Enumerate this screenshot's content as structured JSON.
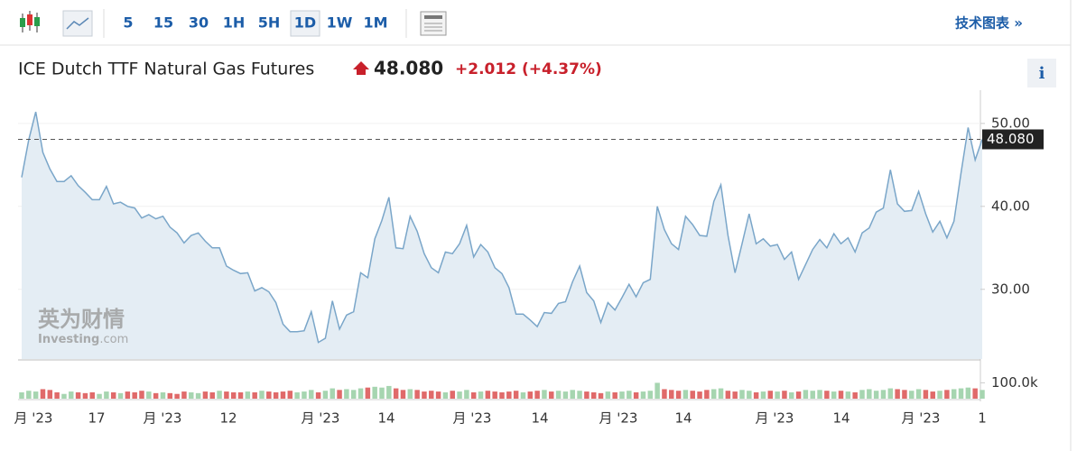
{
  "toolbar": {
    "intervals": [
      "5",
      "15",
      "30",
      "1H",
      "5H",
      "1D",
      "1W",
      "1M"
    ],
    "active": "1D",
    "link": "技术图表 »"
  },
  "header": {
    "name": "ICE Dutch TTF Natural Gas Futures",
    "price": "48.080",
    "change": "+2.012",
    "change_pct": "(+4.37%)",
    "info": "i"
  },
  "watermark": {
    "cn": "英为财情",
    "en": "Investing",
    "en_suffix": ".com"
  },
  "chart_data": {
    "type": "line",
    "values": [
      43.5,
      48,
      51.4,
      46.5,
      44.5,
      43,
      43,
      43.7,
      42.5,
      41.7,
      40.8,
      40.8,
      42.4,
      40.3,
      40.5,
      40,
      39.8,
      38.6,
      39,
      38.5,
      38.8,
      37.5,
      36.8,
      35.6,
      36.5,
      36.8,
      35.8,
      35,
      35,
      32.8,
      32.3,
      31.9,
      32,
      29.8,
      30.2,
      29.7,
      28.4,
      25.8,
      24.9,
      24.9,
      25,
      27.3,
      23.6,
      24.1,
      28.6,
      25.2,
      26.9,
      27.3,
      32,
      31.4,
      36.1,
      38.3,
      41.1,
      35,
      34.9,
      38.8,
      37,
      34.3,
      32.6,
      32,
      34.5,
      34.3,
      35.5,
      37.7,
      33.9,
      35.4,
      34.5,
      32.6,
      31.9,
      30.2,
      27,
      27,
      26.3,
      25.5,
      27.2,
      27.1,
      28.3,
      28.5,
      30.9,
      32.8,
      29.6,
      28.6,
      26,
      28.4,
      27.5,
      29,
      30.6,
      29.1,
      30.8,
      31.2,
      40,
      37.2,
      35.5,
      34.8,
      38.8,
      37.8,
      36.5,
      36.4,
      40.6,
      42.6,
      36.5,
      32,
      35.5,
      39.1,
      35.5,
      36.1,
      35.2,
      35.4,
      33.6,
      34.5,
      31.2,
      33,
      34.8,
      36,
      35,
      36.7,
      35.5,
      36.2,
      34.5,
      36.8,
      37.4,
      39.3,
      39.8,
      44.4,
      40.3,
      39.4,
      39.5,
      41.8,
      39.1,
      36.9,
      38.2,
      36.2,
      38.2,
      44,
      49.5,
      45.6,
      48.08
    ],
    "color": "#7aa6c9",
    "fill": "#e4edf4",
    "ylim": [
      21.6,
      52.7
    ],
    "yticks": [
      {
        "value": 50,
        "label": "50.00"
      },
      {
        "value": 40,
        "label": "40.00"
      },
      {
        "value": 30,
        "label": "30.00"
      }
    ],
    "grid": true,
    "last_value": {
      "value": 48.08,
      "label": "48.080"
    },
    "volume": {
      "values": [
        40000,
        50000,
        45000,
        60000,
        55000,
        40000,
        30000,
        45000,
        40000,
        35000,
        40000,
        30000,
        45000,
        40000,
        35000,
        45000,
        40000,
        50000,
        45000,
        35000,
        40000,
        35000,
        30000,
        45000,
        40000,
        35000,
        45000,
        40000,
        50000,
        45000,
        40000,
        40000,
        45000,
        40000,
        50000,
        45000,
        40000,
        45000,
        50000,
        40000,
        45000,
        55000,
        40000,
        50000,
        65000,
        55000,
        60000,
        55000,
        65000,
        70000,
        75000,
        70000,
        80000,
        65000,
        55000,
        60000,
        55000,
        45000,
        50000,
        45000,
        40000,
        50000,
        45000,
        55000,
        40000,
        45000,
        50000,
        45000,
        40000,
        45000,
        50000,
        40000,
        45000,
        50000,
        55000,
        45000,
        50000,
        45000,
        55000,
        50000,
        45000,
        40000,
        35000,
        45000,
        40000,
        45000,
        50000,
        40000,
        45000,
        50000,
        100000,
        60000,
        55000,
        50000,
        55000,
        50000,
        45000,
        55000,
        60000,
        65000,
        50000,
        45000,
        55000,
        50000,
        40000,
        45000,
        50000,
        45000,
        50000,
        40000,
        45000,
        55000,
        50000,
        55000,
        50000,
        45000,
        50000,
        45000,
        40000,
        55000,
        60000,
        50000,
        55000,
        65000,
        60000,
        55000,
        50000,
        60000,
        55000,
        45000,
        50000,
        55000,
        60000,
        65000,
        70000,
        65000,
        55000
      ],
      "up_color": "#a6d5b0",
      "down_color": "#e06a6a",
      "ylim": [
        0,
        233000
      ],
      "yticks": [
        {
          "value": 100000,
          "label": "100.0k"
        }
      ]
    },
    "xtick_labels": [
      "月 '23",
      "17",
      "月 '23",
      "12",
      "月 '23",
      "14",
      "月 '23",
      "14",
      "月 '23",
      "14",
      "月 '23",
      "14",
      "月 '23",
      "1"
    ]
  }
}
